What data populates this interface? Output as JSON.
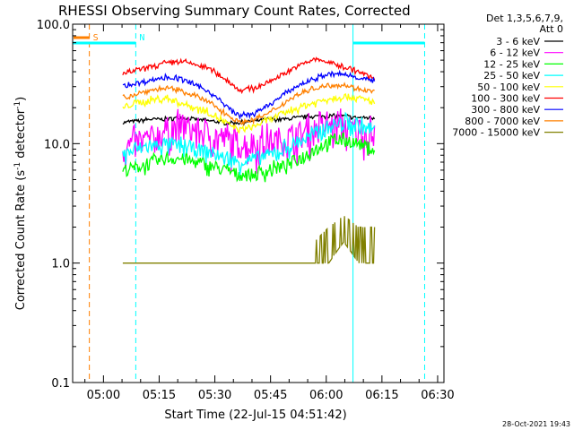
{
  "chart_data": {
    "type": "line",
    "title": "RHESSI Observing Summary Count Rates, Corrected",
    "xlabel": "Start Time (22-Jul-15 04:51:42)",
    "ylabel_main": "Corrected Count Rate (s",
    "ylabel_sup": "-1",
    "ylabel_tail": " detector",
    "ylabel_end": ")",
    "y_scale": "log",
    "ylim": [
      0.1,
      100.0
    ],
    "y_ticks": [
      {
        "value": 0.1,
        "label": "0.1"
      },
      {
        "value": 1.0,
        "label": "1.0"
      },
      {
        "value": 10.0,
        "label": "10.0"
      },
      {
        "value": 100.0,
        "label": "100.0"
      }
    ],
    "x_range_minutes": [
      0,
      100
    ],
    "x_ticks": [
      {
        "t": "05:00",
        "min": 8.3
      },
      {
        "t": "05:15",
        "min": 23.3
      },
      {
        "t": "05:30",
        "min": 38.3
      },
      {
        "t": "05:45",
        "min": 53.3
      },
      {
        "t": "06:00",
        "min": 68.3
      },
      {
        "t": "06:15",
        "min": 83.3
      },
      {
        "t": "06:30",
        "min": 98.3
      }
    ],
    "legend_header": [
      "Det 1,3,5,6,7,9,",
      "Att 0"
    ],
    "legend_placement": "right",
    "flag_markers": [
      {
        "label": "S",
        "color": "#ff8000",
        "x_min": 4.5
      },
      {
        "label": "N",
        "color": "#00ffff",
        "x_min": 17.0
      }
    ],
    "vertical_lines": [
      {
        "x_min": 4.5,
        "color": "#ff8000",
        "style": "dashed"
      },
      {
        "x_min": 17.0,
        "color": "#00ffff",
        "style": "dashed"
      },
      {
        "x_min": 75.5,
        "color": "#00ffff",
        "style": "solid"
      },
      {
        "x_min": 94.8,
        "color": "#00ffff",
        "style": "dashed"
      }
    ],
    "x": [
      13.5,
      17,
      21,
      25,
      29,
      33,
      37,
      41,
      45,
      49,
      53,
      57,
      61,
      65,
      69,
      73,
      77,
      81.3
    ],
    "series": [
      {
        "name": "3 - 6 keV",
        "color": "#000000",
        "values": [
          15,
          15.5,
          16,
          16,
          16.5,
          16,
          15.5,
          15,
          15,
          15.5,
          16,
          16,
          16.5,
          17,
          17,
          17,
          16.5,
          16.5
        ]
      },
      {
        "name": "6 - 12 keV",
        "color": "#ff00ff",
        "values": [
          9,
          10,
          11,
          13,
          14,
          13,
          12,
          11,
          10,
          10,
          10.5,
          11,
          12,
          13,
          14,
          14,
          13,
          12
        ]
      },
      {
        "name": "12 - 25 keV",
        "color": "#00ff00",
        "values": [
          6,
          6.3,
          6.8,
          7.5,
          7.5,
          7,
          6.5,
          6,
          5.5,
          5.5,
          6,
          6.5,
          7.5,
          9,
          10.5,
          11,
          10,
          9
        ]
      },
      {
        "name": "25 - 50 keV",
        "color": "#00ffff",
        "values": [
          8,
          9,
          9.5,
          10,
          9.5,
          9,
          8.5,
          7.5,
          7,
          7.5,
          8,
          9,
          10.5,
          12,
          14,
          15,
          14,
          13
        ]
      },
      {
        "name": "50 - 100 keV",
        "color": "#ffff00",
        "values": [
          20,
          22,
          23,
          24,
          22,
          20,
          18,
          15,
          13,
          14,
          16,
          18,
          20,
          22,
          24,
          25,
          24,
          22
        ]
      },
      {
        "name": "100 - 300 keV",
        "color": "#ff0000",
        "values": [
          38,
          41,
          44,
          47,
          49,
          46,
          42,
          35,
          28,
          29,
          33,
          39,
          45,
          51,
          48,
          44,
          40,
          35
        ]
      },
      {
        "name": "300 - 800 keV",
        "color": "#0000ff",
        "values": [
          30,
          32,
          34,
          36,
          35,
          31,
          27,
          21,
          17,
          18,
          21,
          26,
          31,
          35,
          38,
          38,
          36,
          33
        ]
      },
      {
        "name": "800 - 7000 keV",
        "color": "#ff8000",
        "values": [
          24,
          26,
          28,
          29,
          28,
          25,
          22,
          18,
          15,
          16,
          18,
          22,
          26,
          29,
          31,
          31,
          29,
          27
        ]
      },
      {
        "name": "7000 - 15000 keV",
        "color": "#808000",
        "values": [
          1,
          1,
          1,
          1,
          1,
          1,
          1,
          1,
          1,
          1,
          1,
          1,
          1,
          1.5,
          2,
          2.5,
          2,
          2
        ]
      }
    ],
    "timestamp": "28-Oct-2021 19:43"
  }
}
